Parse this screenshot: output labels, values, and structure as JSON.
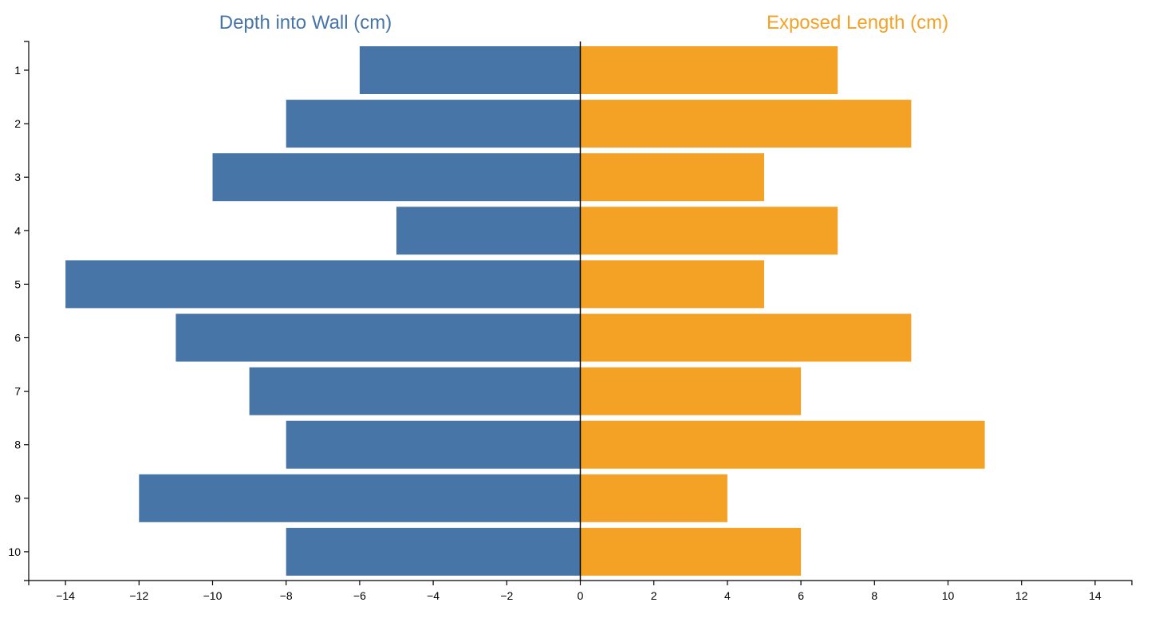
{
  "chart_data": {
    "type": "bar",
    "orientation": "horizontal-diverging",
    "categories": [
      "1",
      "2",
      "3",
      "4",
      "5",
      "6",
      "7",
      "8",
      "9",
      "10"
    ],
    "series": [
      {
        "name": "Depth into Wall (cm)",
        "values": [
          -6,
          -8,
          -10,
          -5,
          -14,
          -11,
          -9,
          -8,
          -12,
          -8
        ],
        "color": "#4875a8"
      },
      {
        "name": "Exposed Length (cm)",
        "values": [
          7,
          9,
          5,
          7,
          5,
          9,
          6,
          11,
          4,
          6
        ],
        "color": "#f4a226"
      }
    ],
    "xlim": [
      -15,
      15
    ],
    "x_ticks": [
      -14,
      -12,
      -10,
      -8,
      -6,
      -4,
      -2,
      0,
      2,
      4,
      6,
      8,
      10,
      12,
      14
    ],
    "x_tick_labels": [
      "−14",
      "−12",
      "−10",
      "−8",
      "−6",
      "−4",
      "−2",
      "0",
      "2",
      "4",
      "6",
      "8",
      "10",
      "12",
      "14"
    ],
    "headers": {
      "left": "Depth into Wall (cm)",
      "right": "Exposed Length (cm)"
    },
    "xlabel": "",
    "ylabel": ""
  }
}
